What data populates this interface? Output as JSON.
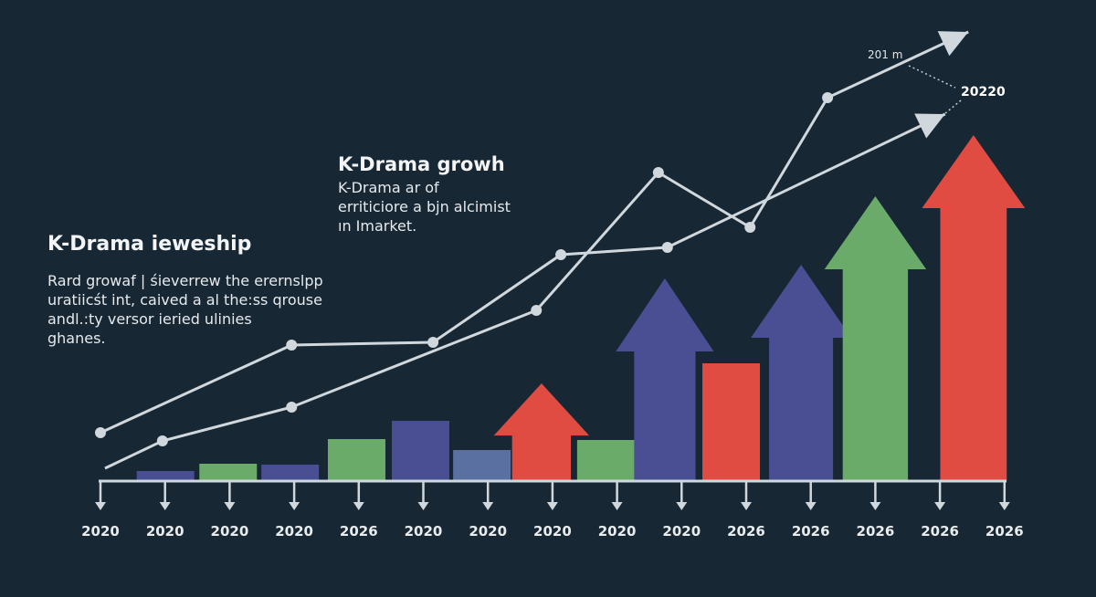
{
  "left_block": {
    "title": "K-Drama ieweship",
    "lines": [
      "Rard growaf | śieverrew the erernslpp",
      "uratiicśt int, caived a al the:ss qrouse",
      "andl.:ty versor ieried ulinies",
      "ghanes."
    ]
  },
  "mid_block": {
    "title": "K-Drama growh",
    "lines": [
      "K-Drama ar of",
      "erriticiore a bjn alcimist",
      "ın Imarket."
    ]
  },
  "chart_data": {
    "type": "bar",
    "title": "",
    "xlabel": "",
    "ylabel": "",
    "grid": false,
    "legend": "none",
    "x_tick_labels": [
      "2020",
      "2020",
      "2020",
      "2020",
      "2026",
      "2020",
      "2020",
      "2020",
      "2020",
      "2020",
      "2026",
      "2026",
      "2026",
      "2026",
      "2026"
    ],
    "colors": {
      "background": "#172733",
      "blue": "#4a4f93",
      "green": "#6aab6a",
      "red": "#e04c42",
      "slate": "#5a70a0",
      "line": "#d0d8de"
    },
    "bars": [
      {
        "x": 1.0,
        "value": 11,
        "color": "blue",
        "shape": "bar"
      },
      {
        "x": 1.97,
        "value": 19,
        "color": "green",
        "shape": "bar"
      },
      {
        "x": 2.93,
        "value": 18,
        "color": "blue",
        "shape": "bar"
      },
      {
        "x": 3.96,
        "value": 46,
        "color": "green",
        "shape": "bar"
      },
      {
        "x": 4.95,
        "value": 66,
        "color": "blue",
        "shape": "bar"
      },
      {
        "x": 5.9,
        "value": 34,
        "color": "slate",
        "shape": "bar"
      },
      {
        "x": 6.83,
        "value": 107,
        "color": "red",
        "shape": "arrow"
      },
      {
        "x": 7.82,
        "value": 45,
        "color": "green",
        "shape": "bar"
      },
      {
        "x": 8.74,
        "value": 222,
        "color": "blue",
        "shape": "arrow"
      },
      {
        "x": 9.76,
        "value": 129,
        "color": "red",
        "shape": "bar"
      },
      {
        "x": 10.85,
        "value": 237,
        "color": "blue",
        "shape": "arrow"
      },
      {
        "x": 12.0,
        "value": 312,
        "color": "green",
        "shape": "arrow"
      },
      {
        "x": 13.52,
        "value": 379,
        "color": "red",
        "shape": "arrow"
      }
    ],
    "series": [
      {
        "points": [
          [
            0,
            53
          ],
          [
            2.96,
            149
          ],
          [
            5.15,
            152
          ],
          [
            7.13,
            248
          ],
          [
            8.78,
            256
          ],
          [
            13.08,
            402
          ]
        ]
      },
      {
        "points": [
          [
            0.07,
            14
          ],
          [
            0.96,
            44
          ],
          [
            2.96,
            81
          ],
          [
            6.75,
            187
          ],
          [
            8.64,
            338
          ],
          [
            10.06,
            278
          ],
          [
            11.26,
            420
          ],
          [
            13.44,
            492
          ]
        ]
      }
    ],
    "annotations": {
      "label_a": "201 m",
      "label_b": "20220"
    }
  }
}
